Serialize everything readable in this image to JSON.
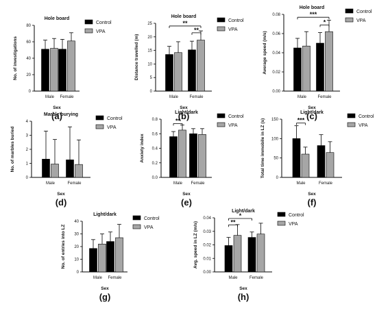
{
  "chart_data": [
    {
      "id": "a",
      "type": "bar",
      "title": "Hole board",
      "ylabel": "No. of investigations",
      "xlabel": "Sex",
      "panel_label": "(a)",
      "categories": [
        "Male",
        "Female"
      ],
      "ylim": [
        0,
        80
      ],
      "yticks": [
        "0",
        "20",
        "40",
        "60",
        "80"
      ],
      "series": [
        {
          "name": "Control",
          "values": [
            51,
            51
          ],
          "errors": [
            11,
            12
          ]
        },
        {
          "name": "VPA",
          "values": [
            52,
            61
          ],
          "errors": [
            12,
            10
          ]
        }
      ],
      "annotations": []
    },
    {
      "id": "b",
      "type": "bar",
      "title": "Hole board",
      "ylabel": "Distance travelled (m)",
      "xlabel": "Sex",
      "panel_label": "(b)",
      "categories": [
        "Male",
        "Female"
      ],
      "ylim": [
        0,
        25
      ],
      "yticks": [
        "0",
        "5",
        "10",
        "15",
        "20",
        "25"
      ],
      "series": [
        {
          "name": "Control",
          "values": [
            13.5,
            15.2
          ],
          "errors": [
            3,
            3.2
          ]
        },
        {
          "name": "VPA",
          "values": [
            14.2,
            18.8
          ],
          "errors": [
            4,
            3.4
          ]
        }
      ],
      "annotations": [
        {
          "text": "**",
          "from": [
            0,
            0
          ],
          "to": [
            1,
            1
          ],
          "y": 24
        },
        {
          "text": "**",
          "from": [
            1,
            0
          ],
          "to": [
            1,
            1
          ],
          "y": 21.5
        }
      ]
    },
    {
      "id": "c",
      "type": "bar",
      "title": "Hole board",
      "ylabel": "Average speed (m/s)",
      "xlabel": "Sex",
      "panel_label": "(c)",
      "categories": [
        "Male",
        "Female"
      ],
      "ylim": [
        0,
        0.08
      ],
      "yticks": [
        "0.00",
        "0.02",
        "0.04",
        "0.06",
        "0.08"
      ],
      "series": [
        {
          "name": "Control",
          "values": [
            0.045,
            0.05
          ],
          "errors": [
            0.01,
            0.011
          ]
        },
        {
          "name": "VPA",
          "values": [
            0.047,
            0.062
          ],
          "errors": [
            0.015,
            0.012
          ]
        }
      ],
      "annotations": [
        {
          "text": "***",
          "from": [
            0,
            0
          ],
          "to": [
            1,
            1
          ],
          "y": 0.077
        },
        {
          "text": "*",
          "from": [
            1,
            0
          ],
          "to": [
            1,
            1
          ],
          "y": 0.069
        }
      ]
    },
    {
      "id": "d",
      "type": "bar",
      "title": "Marble burying",
      "ylabel": "No. of marbles buried",
      "xlabel": "Sex",
      "panel_label": "(d)",
      "categories": [
        "Male",
        "Female"
      ],
      "ylim": [
        0,
        4
      ],
      "yticks": [
        "0",
        "1",
        "2",
        "3",
        "4"
      ],
      "series": [
        {
          "name": "Control",
          "values": [
            1.3,
            1.25
          ],
          "errors": [
            2.0,
            2.35
          ]
        },
        {
          "name": "VPA",
          "values": [
            0.95,
            0.92
          ],
          "errors": [
            1.75,
            1.75
          ]
        }
      ],
      "annotations": []
    },
    {
      "id": "e",
      "type": "bar",
      "title": "Light/dark",
      "ylabel": "Anxiety index",
      "xlabel": "Sex",
      "panel_label": "(e)",
      "categories": [
        "Male",
        "Female"
      ],
      "ylim": [
        0,
        0.8
      ],
      "yticks": [
        "0.0",
        "0.2",
        "0.4",
        "0.6",
        "0.8"
      ],
      "series": [
        {
          "name": "Control",
          "values": [
            0.56,
            0.6
          ],
          "errors": [
            0.07,
            0.07
          ]
        },
        {
          "name": "VPA",
          "values": [
            0.65,
            0.59
          ],
          "errors": [
            0.07,
            0.08
          ]
        }
      ],
      "annotations": [
        {
          "text": "**",
          "from": [
            0,
            0
          ],
          "to": [
            0,
            1
          ],
          "y": 0.74
        }
      ]
    },
    {
      "id": "f",
      "type": "bar",
      "title": "Light/dark",
      "ylabel": "Total time immobile in LZ (s)",
      "xlabel": "Sex",
      "panel_label": "(f)",
      "categories": [
        "Male",
        "Female"
      ],
      "ylim": [
        0,
        150
      ],
      "yticks": [
        "0",
        "50",
        "100",
        "150"
      ],
      "series": [
        {
          "name": "Control",
          "values": [
            100,
            82
          ],
          "errors": [
            33,
            28
          ]
        },
        {
          "name": "VPA",
          "values": [
            60,
            64
          ],
          "errors": [
            18,
            28
          ]
        }
      ],
      "annotations": [
        {
          "text": "***",
          "from": [
            0,
            0
          ],
          "to": [
            0,
            1
          ],
          "y": 140
        }
      ]
    },
    {
      "id": "g",
      "type": "bar",
      "title": "Light/dark",
      "ylabel": "No. of entries into LZ",
      "xlabel": "Sex",
      "panel_label": "(g)",
      "categories": [
        "Male",
        "Female"
      ],
      "ylim": [
        0,
        40
      ],
      "yticks": [
        "0",
        "10",
        "20",
        "30",
        "40"
      ],
      "series": [
        {
          "name": "Control",
          "values": [
            18.5,
            24
          ],
          "errors": [
            7,
            7.5
          ]
        },
        {
          "name": "VPA",
          "values": [
            22,
            27
          ],
          "errors": [
            8,
            10.5
          ]
        }
      ],
      "annotations": []
    },
    {
      "id": "h",
      "type": "bar",
      "title": "Light/dark",
      "ylabel": "Avg. speed in LZ (m/s)",
      "xlabel": "Sex",
      "panel_label": "(h)",
      "categories": [
        "Male",
        "Female"
      ],
      "ylim": [
        0,
        0.04
      ],
      "yticks": [
        "0.00",
        "0.01",
        "0.02",
        "0.03",
        "0.04"
      ],
      "series": [
        {
          "name": "Control",
          "values": [
            0.0195,
            0.0255
          ],
          "errors": [
            0.006,
            0.004
          ]
        },
        {
          "name": "VPA",
          "values": [
            0.027,
            0.028
          ],
          "errors": [
            0.008,
            0.008
          ]
        }
      ],
      "annotations": [
        {
          "text": "**",
          "from": [
            0,
            0
          ],
          "to": [
            0,
            1
          ],
          "y": 0.0348
        },
        {
          "text": "*",
          "from": [
            0,
            0
          ],
          "to": [
            1,
            0
          ],
          "y": 0.0395
        }
      ]
    }
  ],
  "legend": {
    "control": "Control",
    "vpa": "VPA"
  },
  "colors": {
    "control": "#000000",
    "vpa": "#a6a6a6",
    "axis": "#000000"
  }
}
